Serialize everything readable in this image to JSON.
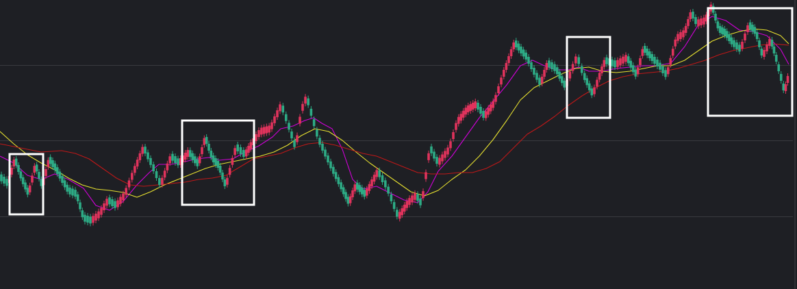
{
  "chart_data": {
    "type": "candlestick",
    "title": "",
    "xlabel": "",
    "ylabel": "",
    "ylim": [
      0,
      422
    ],
    "grid": {
      "horizontal": true,
      "vertical": false,
      "levels": [
        95,
        205,
        316
      ]
    },
    "colors": {
      "background": "#1e1f24",
      "grid": "#3a3b40",
      "up": "#e0335c",
      "down": "#2dab85",
      "ma_fast": "#d100d8",
      "ma_mid": "#e8e230",
      "ma_slow": "#c01818",
      "highlight": "#ffffff"
    },
    "price_path": [
      [
        0,
        258
      ],
      [
        12,
        268
      ],
      [
        22,
        232
      ],
      [
        32,
        260
      ],
      [
        42,
        283
      ],
      [
        52,
        240
      ],
      [
        62,
        272
      ],
      [
        72,
        232
      ],
      [
        82,
        246
      ],
      [
        100,
        278
      ],
      [
        112,
        283
      ],
      [
        122,
        318
      ],
      [
        134,
        322
      ],
      [
        146,
        312
      ],
      [
        158,
        292
      ],
      [
        170,
        300
      ],
      [
        182,
        285
      ],
      [
        195,
        252
      ],
      [
        210,
        215
      ],
      [
        222,
        240
      ],
      [
        235,
        270
      ],
      [
        250,
        228
      ],
      [
        262,
        238
      ],
      [
        276,
        222
      ],
      [
        290,
        240
      ],
      [
        300,
        200
      ],
      [
        310,
        230
      ],
      [
        320,
        242
      ],
      [
        330,
        272
      ],
      [
        345,
        214
      ],
      [
        358,
        226
      ],
      [
        368,
        210
      ],
      [
        380,
        192
      ],
      [
        395,
        188
      ],
      [
        411,
        153
      ],
      [
        420,
        178
      ],
      [
        432,
        216
      ],
      [
        440,
        162
      ],
      [
        448,
        141
      ],
      [
        465,
        202
      ],
      [
        485,
        245
      ],
      [
        500,
        275
      ],
      [
        510,
        296
      ],
      [
        520,
        270
      ],
      [
        534,
        284
      ],
      [
        552,
        250
      ],
      [
        565,
        272
      ],
      [
        582,
        317
      ],
      [
        596,
        296
      ],
      [
        608,
        285
      ],
      [
        616,
        298
      ],
      [
        628,
        215
      ],
      [
        640,
        238
      ],
      [
        656,
        218
      ],
      [
        668,
        178
      ],
      [
        682,
        160
      ],
      [
        696,
        152
      ],
      [
        708,
        170
      ],
      [
        722,
        150
      ],
      [
        734,
        112
      ],
      [
        752,
        62
      ],
      [
        770,
        84
      ],
      [
        782,
        108
      ],
      [
        790,
        122
      ],
      [
        800,
        92
      ],
      [
        812,
        100
      ],
      [
        826,
        126
      ],
      [
        843,
        82
      ],
      [
        852,
        108
      ],
      [
        866,
        138
      ],
      [
        874,
        116
      ],
      [
        884,
        88
      ],
      [
        900,
        94
      ],
      [
        916,
        84
      ],
      [
        930,
        110
      ],
      [
        940,
        70
      ],
      [
        954,
        86
      ],
      [
        962,
        94
      ],
      [
        974,
        110
      ],
      [
        988,
        56
      ],
      [
        1000,
        48
      ],
      [
        1010,
        18
      ],
      [
        1018,
        34
      ],
      [
        1030,
        30
      ],
      [
        1040,
        8
      ],
      [
        1050,
        42
      ],
      [
        1060,
        48
      ],
      [
        1070,
        62
      ],
      [
        1082,
        72
      ],
      [
        1094,
        36
      ],
      [
        1104,
        46
      ],
      [
        1114,
        82
      ],
      [
        1126,
        58
      ],
      [
        1132,
        78
      ],
      [
        1146,
        134
      ],
      [
        1152,
        110
      ]
    ],
    "moving_averages": [
      {
        "key": "fast",
        "points": [
          [
            0,
            228
          ],
          [
            20,
            238
          ],
          [
            40,
            256
          ],
          [
            60,
            262
          ],
          [
            80,
            254
          ],
          [
            100,
            262
          ],
          [
            122,
            275
          ],
          [
            140,
            300
          ],
          [
            160,
            307
          ],
          [
            180,
            294
          ],
          [
            200,
            270
          ],
          [
            218,
            252
          ],
          [
            232,
            240
          ],
          [
            250,
            240
          ],
          [
            270,
            236
          ],
          [
            288,
            232
          ],
          [
            305,
            230
          ],
          [
            320,
            234
          ],
          [
            340,
            232
          ],
          [
            358,
            222
          ],
          [
            378,
            213
          ],
          [
            398,
            200
          ],
          [
            410,
            188
          ],
          [
            428,
            184
          ],
          [
            445,
            176
          ],
          [
            458,
            172
          ],
          [
            470,
            180
          ],
          [
            485,
            188
          ],
          [
            500,
            218
          ],
          [
            515,
            262
          ],
          [
            530,
            276
          ],
          [
            550,
            272
          ],
          [
            570,
            282
          ],
          [
            590,
            292
          ],
          [
            610,
            296
          ],
          [
            625,
            280
          ],
          [
            640,
            250
          ],
          [
            660,
            228
          ],
          [
            680,
            200
          ],
          [
            700,
            172
          ],
          [
            720,
            148
          ],
          [
            740,
            124
          ],
          [
            760,
            96
          ],
          [
            778,
            88
          ],
          [
            795,
            96
          ],
          [
            812,
            102
          ],
          [
            830,
            102
          ],
          [
            845,
            98
          ],
          [
            860,
            104
          ],
          [
            880,
            104
          ],
          [
            900,
            100
          ],
          [
            920,
            98
          ],
          [
            940,
            96
          ],
          [
            960,
            96
          ],
          [
            980,
            92
          ],
          [
            1000,
            68
          ],
          [
            1020,
            36
          ],
          [
            1040,
            24
          ],
          [
            1060,
            30
          ],
          [
            1080,
            44
          ],
          [
            1100,
            46
          ],
          [
            1120,
            52
          ],
          [
            1140,
            72
          ],
          [
            1152,
            94
          ]
        ]
      },
      {
        "key": "mid",
        "points": [
          [
            0,
            192
          ],
          [
            20,
            210
          ],
          [
            40,
            226
          ],
          [
            60,
            238
          ],
          [
            80,
            248
          ],
          [
            100,
            260
          ],
          [
            120,
            270
          ],
          [
            140,
            276
          ],
          [
            160,
            278
          ],
          [
            180,
            281
          ],
          [
            200,
            288
          ],
          [
            220,
            280
          ],
          [
            240,
            270
          ],
          [
            260,
            262
          ],
          [
            280,
            254
          ],
          [
            300,
            246
          ],
          [
            320,
            240
          ],
          [
            340,
            236
          ],
          [
            360,
            232
          ],
          [
            380,
            228
          ],
          [
            400,
            222
          ],
          [
            420,
            212
          ],
          [
            440,
            198
          ],
          [
            460,
            188
          ],
          [
            480,
            192
          ],
          [
            500,
            205
          ],
          [
            520,
            222
          ],
          [
            540,
            238
          ],
          [
            560,
            252
          ],
          [
            580,
            266
          ],
          [
            600,
            280
          ],
          [
            620,
            286
          ],
          [
            640,
            278
          ],
          [
            660,
            262
          ],
          [
            680,
            248
          ],
          [
            700,
            228
          ],
          [
            720,
            204
          ],
          [
            740,
            176
          ],
          [
            760,
            146
          ],
          [
            780,
            128
          ],
          [
            800,
            118
          ],
          [
            820,
            108
          ],
          [
            840,
            100
          ],
          [
            860,
            98
          ],
          [
            880,
            104
          ],
          [
            900,
            106
          ],
          [
            920,
            104
          ],
          [
            940,
            100
          ],
          [
            960,
            96
          ],
          [
            980,
            96
          ],
          [
            1000,
            88
          ],
          [
            1020,
            74
          ],
          [
            1040,
            60
          ],
          [
            1060,
            52
          ],
          [
            1080,
            46
          ],
          [
            1100,
            42
          ],
          [
            1120,
            44
          ],
          [
            1140,
            52
          ],
          [
            1152,
            64
          ]
        ]
      },
      {
        "key": "slow",
        "points": [
          [
            0,
            210
          ],
          [
            30,
            216
          ],
          [
            60,
            222
          ],
          [
            90,
            220
          ],
          [
            110,
            224
          ],
          [
            130,
            232
          ],
          [
            150,
            246
          ],
          [
            170,
            260
          ],
          [
            190,
            270
          ],
          [
            210,
            272
          ],
          [
            230,
            270
          ],
          [
            250,
            268
          ],
          [
            270,
            266
          ],
          [
            290,
            262
          ],
          [
            310,
            260
          ],
          [
            330,
            256
          ],
          [
            350,
            244
          ],
          [
            370,
            232
          ],
          [
            390,
            228
          ],
          [
            410,
            224
          ],
          [
            430,
            216
          ],
          [
            450,
            210
          ],
          [
            470,
            208
          ],
          [
            490,
            212
          ],
          [
            510,
            218
          ],
          [
            530,
            224
          ],
          [
            550,
            228
          ],
          [
            570,
            236
          ],
          [
            590,
            244
          ],
          [
            610,
            252
          ],
          [
            630,
            254
          ],
          [
            650,
            254
          ],
          [
            670,
            252
          ],
          [
            690,
            252
          ],
          [
            710,
            246
          ],
          [
            730,
            236
          ],
          [
            750,
            216
          ],
          [
            770,
            196
          ],
          [
            790,
            184
          ],
          [
            810,
            170
          ],
          [
            830,
            154
          ],
          [
            850,
            140
          ],
          [
            870,
            128
          ],
          [
            890,
            118
          ],
          [
            910,
            112
          ],
          [
            930,
            108
          ],
          [
            950,
            106
          ],
          [
            970,
            104
          ],
          [
            990,
            100
          ],
          [
            1010,
            94
          ],
          [
            1030,
            88
          ],
          [
            1050,
            80
          ],
          [
            1070,
            74
          ],
          [
            1090,
            70
          ],
          [
            1110,
            66
          ],
          [
            1130,
            64
          ],
          [
            1152,
            66
          ]
        ]
      }
    ],
    "highlight_boxes": [
      {
        "x": [
          14,
          63
        ],
        "y": [
          225,
          313
        ]
      },
      {
        "x": [
          266,
          371
        ],
        "y": [
          176,
          299
        ]
      },
      {
        "x": [
          828,
          891
        ],
        "y": [
          54,
          172
        ]
      },
      {
        "x": [
          1034,
          1157
        ],
        "y": [
          12,
          169
        ]
      }
    ]
  }
}
